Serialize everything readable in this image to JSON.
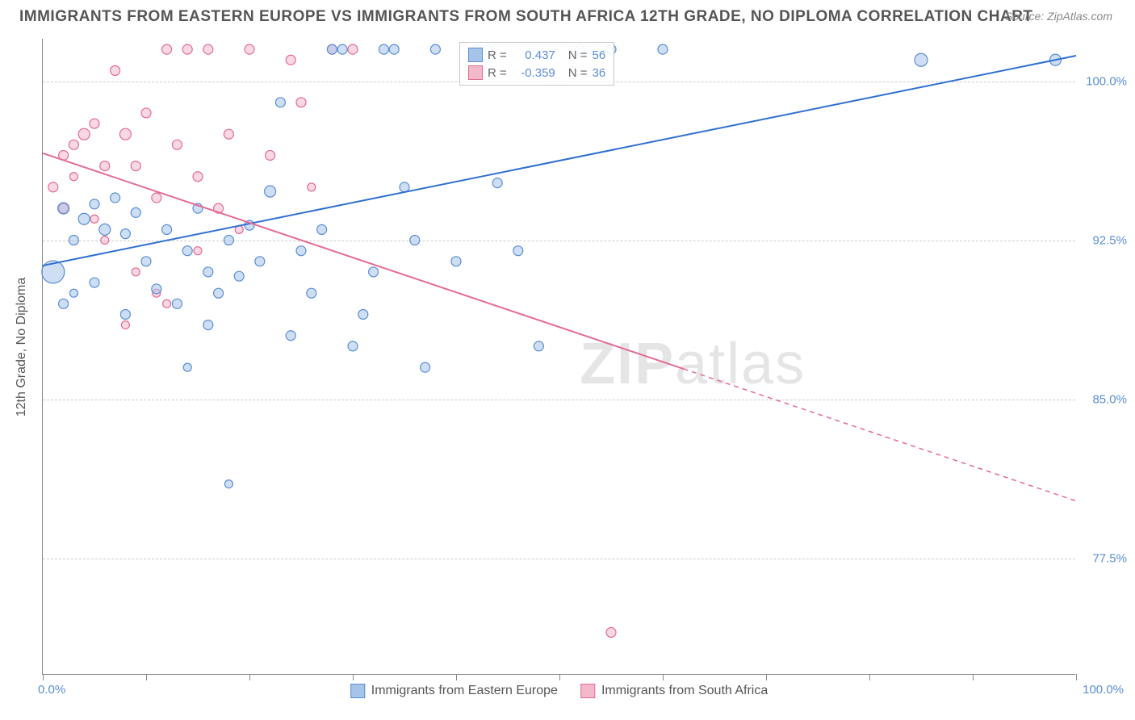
{
  "title": "IMMIGRANTS FROM EASTERN EUROPE VS IMMIGRANTS FROM SOUTH AFRICA 12TH GRADE, NO DIPLOMA CORRELATION CHART",
  "source": "Source: ZipAtlas.com",
  "watermark_a": "ZIP",
  "watermark_b": "atlas",
  "yaxis_label": "12th Grade, No Diploma",
  "chart": {
    "type": "scatter-with-regression",
    "xlim": [
      0,
      100
    ],
    "ylim": [
      72,
      102
    ],
    "ytick_positions": [
      77.5,
      85.0,
      92.5,
      100.0
    ],
    "ytick_labels": [
      "77.5%",
      "85.0%",
      "92.5%",
      "100.0%"
    ],
    "xtick_positions": [
      0,
      10,
      20,
      30,
      40,
      50,
      60,
      70,
      80,
      90,
      100
    ],
    "xtick_label_left": "0.0%",
    "xtick_label_right": "100.0%",
    "colors": {
      "series1_fill": "#a6c4ea",
      "series1_stroke": "#5b8dd6",
      "series2_fill": "#f3b8ca",
      "series2_stroke": "#e46b94",
      "regression1": "#2f6fd0",
      "regression2": "#e46b94",
      "grid": "#cccccc",
      "axis": "#888888",
      "tick_text": "#5b8dd6"
    },
    "legend_top": {
      "rows": [
        {
          "swatch_fill": "#a6c4ea",
          "swatch_stroke": "#5b8dd6",
          "r_label": "R =",
          "r_value": "0.437",
          "n_label": "N =",
          "n_value": "56"
        },
        {
          "swatch_fill": "#f3b8ca",
          "swatch_stroke": "#e46b94",
          "r_label": "R =",
          "r_value": "-0.359",
          "n_label": "N =",
          "n_value": "36"
        }
      ]
    },
    "legend_bottom": [
      {
        "swatch_fill": "#a6c4ea",
        "swatch_stroke": "#5b8dd6",
        "label": "Immigrants from Eastern Europe"
      },
      {
        "swatch_fill": "#f3b8ca",
        "swatch_stroke": "#e46b94",
        "label": "Immigrants from South Africa"
      }
    ],
    "regression_lines": [
      {
        "series": 1,
        "x1": 0,
        "y1": 91.3,
        "x2": 100,
        "y2": 101.2,
        "color": "#2f6fd0",
        "solid_until_x": 100
      },
      {
        "series": 2,
        "x1": 0,
        "y1": 96.6,
        "x2": 100,
        "y2": 80.2,
        "color": "#e46b94",
        "solid_until_x": 62
      }
    ],
    "marker_opacity": 0.55,
    "marker_stroke_width": 1.2,
    "series1_points": [
      {
        "x": 1,
        "y": 91.0,
        "r": 14
      },
      {
        "x": 2,
        "y": 94.0,
        "r": 7
      },
      {
        "x": 3,
        "y": 92.5,
        "r": 6
      },
      {
        "x": 2,
        "y": 89.5,
        "r": 6
      },
      {
        "x": 4,
        "y": 93.5,
        "r": 7
      },
      {
        "x": 5,
        "y": 94.2,
        "r": 6
      },
      {
        "x": 6,
        "y": 93.0,
        "r": 7
      },
      {
        "x": 3,
        "y": 90.0,
        "r": 5
      },
      {
        "x": 7,
        "y": 94.5,
        "r": 6
      },
      {
        "x": 8,
        "y": 92.8,
        "r": 6
      },
      {
        "x": 5,
        "y": 90.5,
        "r": 6
      },
      {
        "x": 9,
        "y": 93.8,
        "r": 6
      },
      {
        "x": 10,
        "y": 91.5,
        "r": 6
      },
      {
        "x": 8,
        "y": 89.0,
        "r": 6
      },
      {
        "x": 12,
        "y": 93.0,
        "r": 6
      },
      {
        "x": 11,
        "y": 90.2,
        "r": 6
      },
      {
        "x": 14,
        "y": 92.0,
        "r": 6
      },
      {
        "x": 13,
        "y": 89.5,
        "r": 6
      },
      {
        "x": 15,
        "y": 94.0,
        "r": 6
      },
      {
        "x": 16,
        "y": 91.0,
        "r": 6
      },
      {
        "x": 18,
        "y": 92.5,
        "r": 6
      },
      {
        "x": 17,
        "y": 90.0,
        "r": 6
      },
      {
        "x": 20,
        "y": 93.2,
        "r": 6
      },
      {
        "x": 19,
        "y": 90.8,
        "r": 6
      },
      {
        "x": 16,
        "y": 88.5,
        "r": 6
      },
      {
        "x": 21,
        "y": 91.5,
        "r": 6
      },
      {
        "x": 22,
        "y": 94.8,
        "r": 7
      },
      {
        "x": 23,
        "y": 99.0,
        "r": 6
      },
      {
        "x": 24,
        "y": 88.0,
        "r": 6
      },
      {
        "x": 25,
        "y": 92.0,
        "r": 6
      },
      {
        "x": 26,
        "y": 90.0,
        "r": 6
      },
      {
        "x": 28,
        "y": 101.5,
        "r": 6
      },
      {
        "x": 29,
        "y": 101.5,
        "r": 6
      },
      {
        "x": 27,
        "y": 93.0,
        "r": 6
      },
      {
        "x": 30,
        "y": 87.5,
        "r": 6
      },
      {
        "x": 32,
        "y": 91.0,
        "r": 6
      },
      {
        "x": 33,
        "y": 101.5,
        "r": 6
      },
      {
        "x": 34,
        "y": 101.5,
        "r": 6
      },
      {
        "x": 31,
        "y": 89.0,
        "r": 6
      },
      {
        "x": 36,
        "y": 92.5,
        "r": 6
      },
      {
        "x": 35,
        "y": 95.0,
        "r": 6
      },
      {
        "x": 38,
        "y": 101.5,
        "r": 6
      },
      {
        "x": 37,
        "y": 86.5,
        "r": 6
      },
      {
        "x": 40,
        "y": 91.5,
        "r": 6
      },
      {
        "x": 42,
        "y": 101.5,
        "r": 6
      },
      {
        "x": 43,
        "y": 101.5,
        "r": 6
      },
      {
        "x": 44,
        "y": 95.2,
        "r": 6
      },
      {
        "x": 46,
        "y": 92.0,
        "r": 6
      },
      {
        "x": 48,
        "y": 87.5,
        "r": 6
      },
      {
        "x": 52,
        "y": 101.5,
        "r": 6
      },
      {
        "x": 55,
        "y": 101.5,
        "r": 6
      },
      {
        "x": 60,
        "y": 101.5,
        "r": 6
      },
      {
        "x": 85,
        "y": 101.0,
        "r": 8
      },
      {
        "x": 98,
        "y": 101.0,
        "r": 7
      },
      {
        "x": 18,
        "y": 81.0,
        "r": 5
      },
      {
        "x": 14,
        "y": 86.5,
        "r": 5
      }
    ],
    "series2_points": [
      {
        "x": 1,
        "y": 95.0,
        "r": 6
      },
      {
        "x": 2,
        "y": 96.5,
        "r": 6
      },
      {
        "x": 3,
        "y": 97.0,
        "r": 6
      },
      {
        "x": 2,
        "y": 94.0,
        "r": 6
      },
      {
        "x": 4,
        "y": 97.5,
        "r": 7
      },
      {
        "x": 5,
        "y": 98.0,
        "r": 6
      },
      {
        "x": 3,
        "y": 95.5,
        "r": 5
      },
      {
        "x": 6,
        "y": 96.0,
        "r": 6
      },
      {
        "x": 7,
        "y": 100.5,
        "r": 6
      },
      {
        "x": 5,
        "y": 93.5,
        "r": 5
      },
      {
        "x": 8,
        "y": 97.5,
        "r": 7
      },
      {
        "x": 9,
        "y": 96.0,
        "r": 6
      },
      {
        "x": 6,
        "y": 92.5,
        "r": 5
      },
      {
        "x": 10,
        "y": 98.5,
        "r": 6
      },
      {
        "x": 11,
        "y": 94.5,
        "r": 6
      },
      {
        "x": 12,
        "y": 101.5,
        "r": 6
      },
      {
        "x": 9,
        "y": 91.0,
        "r": 5
      },
      {
        "x": 13,
        "y": 97.0,
        "r": 6
      },
      {
        "x": 14,
        "y": 101.5,
        "r": 6
      },
      {
        "x": 11,
        "y": 90.0,
        "r": 5
      },
      {
        "x": 15,
        "y": 95.5,
        "r": 6
      },
      {
        "x": 16,
        "y": 101.5,
        "r": 6
      },
      {
        "x": 17,
        "y": 94.0,
        "r": 6
      },
      {
        "x": 18,
        "y": 97.5,
        "r": 6
      },
      {
        "x": 20,
        "y": 101.5,
        "r": 6
      },
      {
        "x": 19,
        "y": 93.0,
        "r": 5
      },
      {
        "x": 22,
        "y": 96.5,
        "r": 6
      },
      {
        "x": 24,
        "y": 101.0,
        "r": 6
      },
      {
        "x": 25,
        "y": 99.0,
        "r": 6
      },
      {
        "x": 28,
        "y": 101.5,
        "r": 6
      },
      {
        "x": 30,
        "y": 101.5,
        "r": 6
      },
      {
        "x": 12,
        "y": 89.5,
        "r": 5
      },
      {
        "x": 8,
        "y": 88.5,
        "r": 5
      },
      {
        "x": 26,
        "y": 95.0,
        "r": 5
      },
      {
        "x": 15,
        "y": 92.0,
        "r": 5
      },
      {
        "x": 55,
        "y": 74.0,
        "r": 6
      }
    ]
  }
}
